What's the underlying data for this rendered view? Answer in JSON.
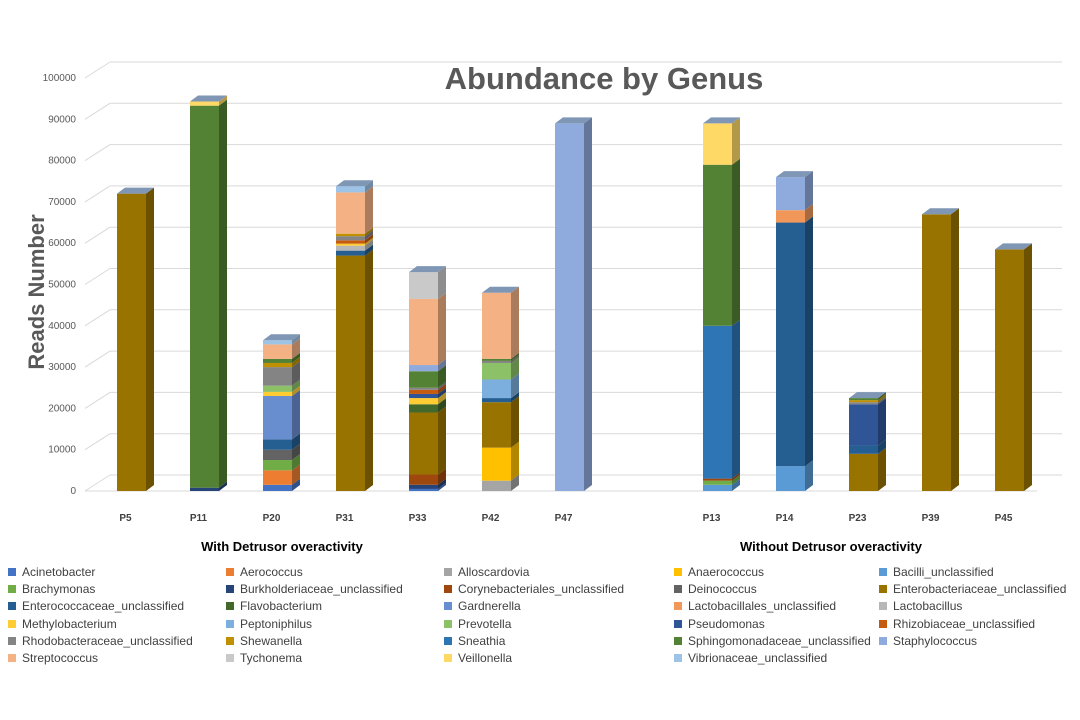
{
  "chart_data": {
    "type": "bar",
    "stacked": true,
    "title": "Abundance by Genus",
    "ylabel": "Reads Number",
    "xlabel": "",
    "ylim": [
      0,
      100000
    ],
    "yticks": [
      0,
      10000,
      20000,
      30000,
      40000,
      50000,
      60000,
      70000,
      80000,
      90000,
      100000
    ],
    "grid": true,
    "legend_position": "bottom",
    "groups": [
      {
        "label": "With Detrusor overactivity",
        "categories": [
          "P5",
          "P11",
          "P20",
          "P31",
          "P33",
          "P42",
          "P47"
        ]
      },
      {
        "label": "Without Detrusor overactivity",
        "categories": [
          "P13",
          "P14",
          "P23",
          "P39",
          "P45"
        ]
      }
    ],
    "categories": [
      "P5",
      "P11",
      "P20",
      "P31",
      "P33",
      "P42",
      "P47",
      "P13",
      "P14",
      "P23",
      "P39",
      "P45"
    ],
    "series": [
      {
        "name": "Acinetobacter",
        "color": "#4472c4",
        "values": [
          0,
          0,
          1500,
          0,
          500,
          0,
          0,
          0,
          0,
          0,
          0,
          0
        ]
      },
      {
        "name": "Aerococcus",
        "color": "#ed7d31",
        "values": [
          0,
          0,
          3500,
          0,
          0,
          0,
          0,
          0,
          0,
          0,
          0,
          0
        ]
      },
      {
        "name": "Alloscardovia",
        "color": "#a5a5a5",
        "values": [
          0,
          0,
          0,
          0,
          0,
          2500,
          0,
          0,
          0,
          0,
          0,
          0
        ]
      },
      {
        "name": "Anaerococcus",
        "color": "#ffc000",
        "values": [
          0,
          0,
          0,
          0,
          0,
          8000,
          0,
          0,
          0,
          0,
          0,
          0
        ]
      },
      {
        "name": "Bacilli_unclassified",
        "color": "#5b9bd5",
        "values": [
          0,
          0,
          0,
          0,
          0,
          0,
          0,
          1500,
          6000,
          0,
          0,
          0
        ]
      },
      {
        "name": "Brachymonas",
        "color": "#70ad47",
        "values": [
          0,
          0,
          2500,
          0,
          0,
          0,
          0,
          1000,
          0,
          0,
          0,
          0
        ]
      },
      {
        "name": "Burkholderiaceae_unclassified",
        "color": "#264478",
        "values": [
          0,
          800,
          0,
          0,
          1000,
          0,
          0,
          0,
          0,
          0,
          0,
          0
        ]
      },
      {
        "name": "Corynebacteriales_unclassified",
        "color": "#9e480e",
        "values": [
          0,
          0,
          0,
          0,
          2500,
          0,
          0,
          500,
          0,
          0,
          0,
          0
        ]
      },
      {
        "name": "Deinococcus",
        "color": "#636363",
        "values": [
          0,
          0,
          2500,
          0,
          0,
          0,
          0,
          0,
          0,
          0,
          0,
          0
        ]
      },
      {
        "name": "Enterobacteriaceae_unclassified",
        "color": "#997300",
        "values": [
          72000,
          0,
          0,
          57000,
          15000,
          11000,
          0,
          0,
          0,
          9000,
          67000,
          58500
        ]
      },
      {
        "name": "Enterococcaceae_unclassified",
        "color": "#255e91",
        "values": [
          0,
          0,
          2500,
          1200,
          0,
          1000,
          0,
          0,
          59000,
          2000,
          0,
          0
        ]
      },
      {
        "name": "Flavobacterium",
        "color": "#43682b",
        "values": [
          0,
          0,
          0,
          0,
          2000,
          0,
          0,
          0,
          0,
          0,
          0,
          0
        ]
      },
      {
        "name": "Gardnerella",
        "color": "#698ed0",
        "values": [
          0,
          0,
          10500,
          0,
          0,
          0,
          0,
          0,
          0,
          0,
          0,
          0
        ]
      },
      {
        "name": "Lactobacillales_unclassified",
        "color": "#f1975a",
        "values": [
          0,
          0,
          0,
          0,
          0,
          0,
          0,
          0,
          3000,
          0,
          0,
          0
        ]
      },
      {
        "name": "Lactobacillus",
        "color": "#b7b7b7",
        "values": [
          0,
          0,
          0,
          1200,
          0,
          0,
          0,
          0,
          0,
          0,
          0,
          0
        ]
      },
      {
        "name": "Methylobacterium",
        "color": "#ffcd33",
        "values": [
          0,
          0,
          1000,
          500,
          1500,
          0,
          0,
          0,
          0,
          0,
          0,
          0
        ]
      },
      {
        "name": "Peptoniphilus",
        "color": "#7cafdd",
        "values": [
          0,
          0,
          0,
          0,
          0,
          4500,
          0,
          0,
          0,
          0,
          0,
          0
        ]
      },
      {
        "name": "Prevotella",
        "color": "#8cc168",
        "values": [
          0,
          0,
          1500,
          0,
          0,
          4000,
          0,
          0,
          0,
          0,
          0,
          0
        ]
      },
      {
        "name": "Pseudomonas",
        "color": "#2f5597",
        "values": [
          0,
          0,
          0,
          0,
          1000,
          0,
          0,
          0,
          0,
          10000,
          0,
          0
        ]
      },
      {
        "name": "Rhizobiaceae_unclassified",
        "color": "#c55a11",
        "values": [
          0,
          0,
          0,
          800,
          1000,
          0,
          0,
          0,
          0,
          0,
          0,
          0
        ]
      },
      {
        "name": "Rhodobacteraceae_unclassified",
        "color": "#848484",
        "values": [
          0,
          0,
          4500,
          1000,
          500,
          500,
          0,
          0,
          0,
          500,
          0,
          0
        ]
      },
      {
        "name": "Shewanella",
        "color": "#bf9000",
        "values": [
          0,
          0,
          1000,
          600,
          0,
          0,
          0,
          0,
          0,
          500,
          0,
          0
        ]
      },
      {
        "name": "Sneathia",
        "color": "#2e75b6",
        "values": [
          0,
          0,
          0,
          0,
          0,
          0,
          0,
          37000,
          0,
          0,
          0,
          0
        ]
      },
      {
        "name": "Sphingomonadaceae_unclassified",
        "color": "#548235",
        "values": [
          0,
          92500,
          1000,
          0,
          4000,
          500,
          0,
          39000,
          0,
          500,
          0,
          0
        ]
      },
      {
        "name": "Staphylococcus",
        "color": "#8faadc",
        "values": [
          0,
          0,
          0,
          0,
          1500,
          0,
          89000,
          0,
          8000,
          0,
          0,
          0
        ]
      },
      {
        "name": "Streptococcus",
        "color": "#f4b183",
        "values": [
          0,
          0,
          3500,
          10000,
          16000,
          16000,
          0,
          0,
          0,
          0,
          0,
          0
        ]
      },
      {
        "name": "Tychonema",
        "color": "#c9c9c9",
        "values": [
          0,
          0,
          0,
          0,
          6500,
          0,
          0,
          0,
          0,
          0,
          0,
          0
        ]
      },
      {
        "name": "Veillonella",
        "color": "#ffd966",
        "values": [
          0,
          1000,
          0,
          0,
          0,
          0,
          0,
          10000,
          0,
          0,
          0,
          0
        ]
      },
      {
        "name": "Vibrionaceae_unclassified",
        "color": "#9dc3e6",
        "values": [
          0,
          0,
          1000,
          1500,
          0,
          0,
          0,
          0,
          0,
          0,
          0,
          0
        ]
      }
    ]
  }
}
